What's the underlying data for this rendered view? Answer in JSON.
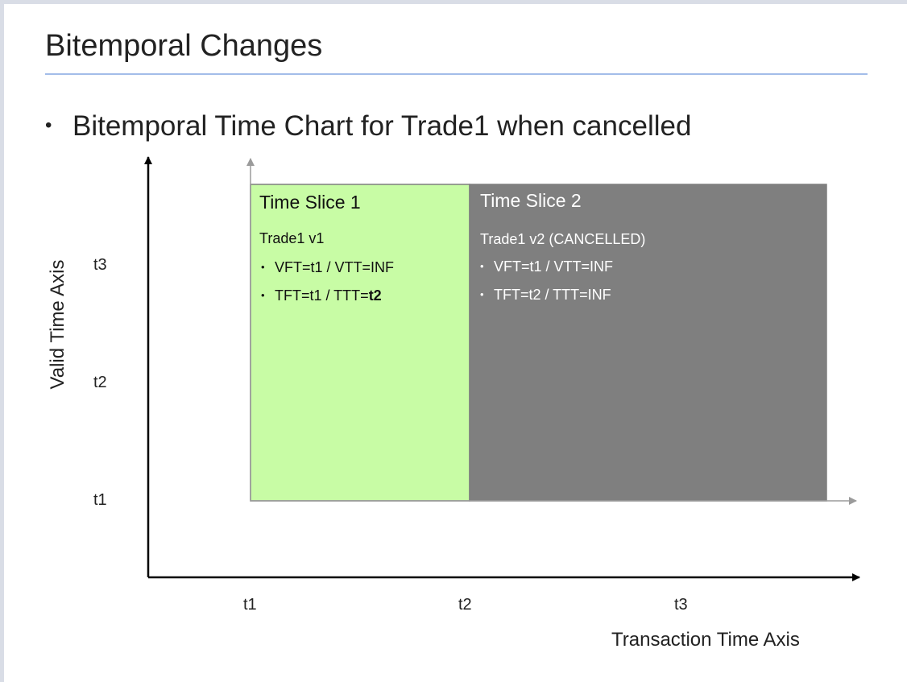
{
  "title": "Bitemporal Changes",
  "bullet": "Bitemporal Time Chart for Trade1 when cancelled",
  "axes": {
    "valid_label": "Valid Time Axis",
    "transaction_label": "Transaction Time Axis",
    "valid_ticks": [
      "t3",
      "t2",
      "t1"
    ],
    "transaction_ticks": [
      "t1",
      "t2",
      "t3"
    ]
  },
  "slices": [
    {
      "title": "Time Slice 1",
      "version": "Trade1 v1",
      "line1": "VFT=t1 / VTT=INF",
      "line2_prefix": "TFT=t1 / TTT=",
      "line2_emph": "t2",
      "color": "#c8fca5"
    },
    {
      "title": "Time Slice 2",
      "version": "Trade1 v2 (CANCELLED)",
      "line1": "VFT=t1 / VTT=INF",
      "line2": "TFT=t2 / TTT=INF",
      "color": "#7f7f7f"
    }
  ],
  "colors": {
    "title_rule": "#a3bde9",
    "axis": "#000000",
    "inner_axis": "#9b9b9b"
  }
}
